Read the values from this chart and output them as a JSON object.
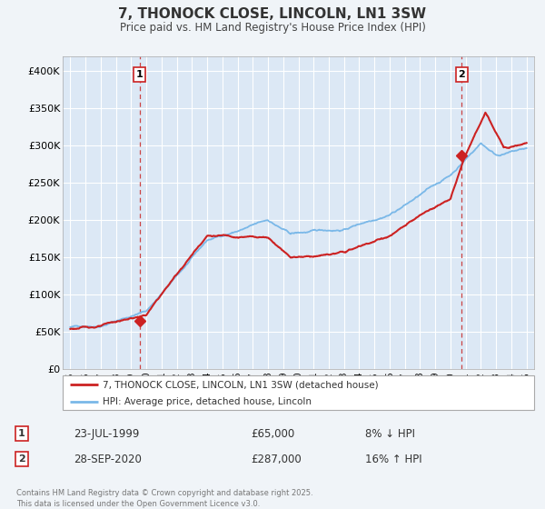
{
  "title": "7, THONOCK CLOSE, LINCOLN, LN1 3SW",
  "subtitle": "Price paid vs. HM Land Registry's House Price Index (HPI)",
  "background_color": "#f0f4f8",
  "plot_bg_color": "#dce8f5",
  "grid_color": "#ffffff",
  "sale1": {
    "date_num": 1999.55,
    "price": 65000,
    "label": "1",
    "date_str": "23-JUL-1999",
    "pct": "8%",
    "dir": "↓"
  },
  "sale2": {
    "date_num": 2020.75,
    "price": 287000,
    "label": "2",
    "date_str": "28-SEP-2020",
    "pct": "16%",
    "dir": "↑"
  },
  "hpi_color": "#7ab8e8",
  "price_color": "#cc2222",
  "marker_color": "#cc2222",
  "vline_color": "#cc4444",
  "ylim": [
    0,
    420000
  ],
  "xlim": [
    1994.5,
    2025.5
  ],
  "yticks": [
    0,
    50000,
    100000,
    150000,
    200000,
    250000,
    300000,
    350000,
    400000
  ],
  "ytick_labels": [
    "£0",
    "£50K",
    "£100K",
    "£150K",
    "£200K",
    "£250K",
    "£300K",
    "£350K",
    "£400K"
  ],
  "xticks": [
    1995,
    1996,
    1997,
    1998,
    1999,
    2000,
    2001,
    2002,
    2003,
    2004,
    2005,
    2006,
    2007,
    2008,
    2009,
    2010,
    2011,
    2012,
    2013,
    2014,
    2015,
    2016,
    2017,
    2018,
    2019,
    2020,
    2021,
    2022,
    2023,
    2024,
    2025
  ],
  "legend_label1": "7, THONOCK CLOSE, LINCOLN, LN1 3SW (detached house)",
  "legend_label2": "HPI: Average price, detached house, Lincoln",
  "footnote": "Contains HM Land Registry data © Crown copyright and database right 2025.\nThis data is licensed under the Open Government Licence v3.0.",
  "table_row1": [
    "1",
    "23-JUL-1999",
    "£65,000",
    "8% ↓ HPI"
  ],
  "table_row2": [
    "2",
    "28-SEP-2020",
    "£287,000",
    "16% ↑ HPI"
  ]
}
